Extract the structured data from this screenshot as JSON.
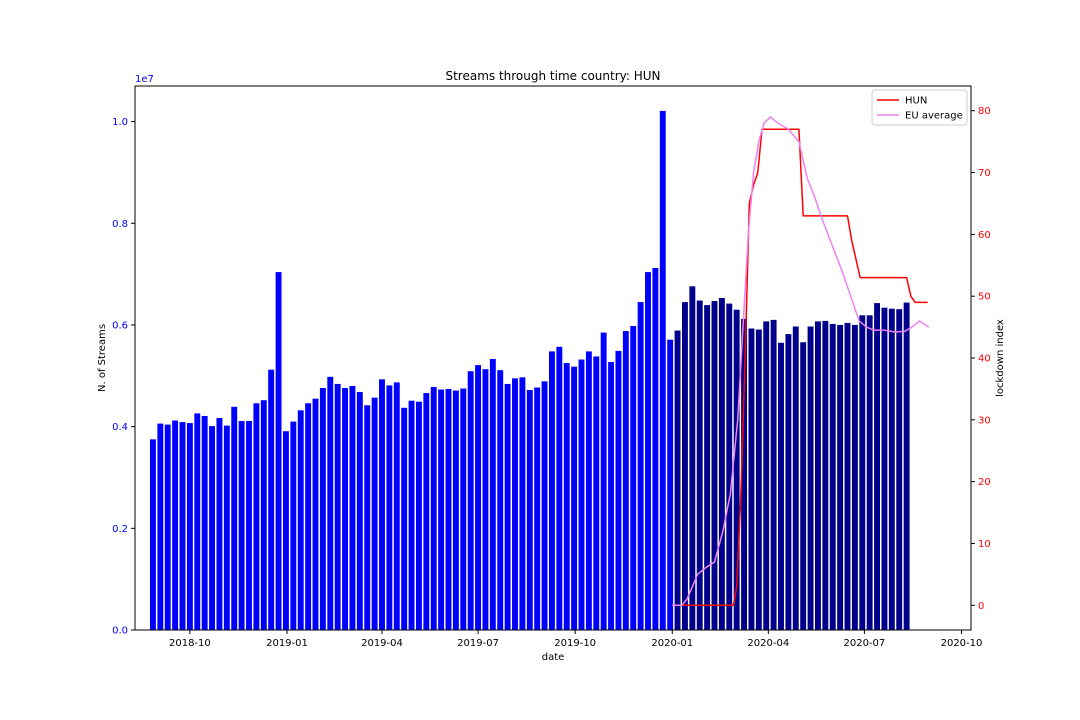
{
  "chart_data": {
    "type": "bar+line",
    "title": "Streams through time country: HUN",
    "xlabel": "date",
    "ylabel_left": "N. of Streams",
    "ylabel_right": "lockdown index",
    "left_axis_multiplier": "1e7",
    "left_ylim": [
      0,
      1.07
    ],
    "left_yticks": [
      "0.0",
      "0.2",
      "0.4",
      "0.6",
      "0.8",
      "1.0"
    ],
    "right_ylim": [
      -4,
      84
    ],
    "right_yticks": [
      "0",
      "10",
      "20",
      "30",
      "40",
      "50",
      "60",
      "70",
      "80"
    ],
    "xlim": [
      "2018-08-10",
      "2020-10-10"
    ],
    "xticks": [
      "2018-10",
      "2019-01",
      "2019-04",
      "2019-07",
      "2019-10",
      "2020-01",
      "2020-04",
      "2020-07",
      "2020-10"
    ],
    "bars": {
      "start_date": "2018-08-27",
      "interval": "week",
      "color_2019_and_earlier": "#0000ff",
      "color_2020": "#00008b",
      "values": [
        0.375,
        0.406,
        0.404,
        0.412,
        0.409,
        0.407,
        0.426,
        0.421,
        0.401,
        0.417,
        0.402,
        0.439,
        0.411,
        0.411,
        0.446,
        0.452,
        0.512,
        0.704,
        0.391,
        0.41,
        0.432,
        0.446,
        0.455,
        0.476,
        0.498,
        0.484,
        0.476,
        0.48,
        0.468,
        0.442,
        0.457,
        0.493,
        0.481,
        0.487,
        0.437,
        0.451,
        0.449,
        0.466,
        0.478,
        0.473,
        0.474,
        0.471,
        0.475,
        0.509,
        0.521,
        0.513,
        0.533,
        0.511,
        0.484,
        0.495,
        0.497,
        0.472,
        0.477,
        0.489,
        0.548,
        0.557,
        0.525,
        0.518,
        0.532,
        0.548,
        0.538,
        0.585,
        0.527,
        0.549,
        0.588,
        0.598,
        0.645,
        0.704,
        0.712,
        1.021,
        0.571,
        0.589,
        0.645,
        0.676,
        0.648,
        0.639,
        0.647,
        0.653,
        0.642,
        0.63,
        0.612,
        0.593,
        0.591,
        0.607,
        0.61,
        0.565,
        0.582,
        0.597,
        0.566,
        0.597,
        0.607,
        0.608,
        0.602,
        0.6,
        0.604,
        0.6,
        0.619,
        0.619,
        0.643,
        0.634,
        0.632,
        0.631,
        0.644
      ]
    },
    "series": [
      {
        "name": "HUN",
        "color": "#ff0000",
        "x": [
          "2020-01-01",
          "2020-02-15",
          "2020-02-28",
          "2020-03-02",
          "2020-03-06",
          "2020-03-10",
          "2020-03-14",
          "2020-03-18",
          "2020-03-22",
          "2020-03-26",
          "2020-03-30",
          "2020-04-30",
          "2020-05-04",
          "2020-06-15",
          "2020-06-19",
          "2020-06-23",
          "2020-06-27",
          "2020-08-10",
          "2020-08-14",
          "2020-08-18",
          "2020-08-24",
          "2020-08-30"
        ],
        "values": [
          0,
          0,
          0,
          3,
          18,
          40,
          65,
          68,
          70,
          77,
          77,
          77,
          63,
          63,
          59,
          56,
          53,
          53,
          50,
          49,
          49,
          49
        ]
      },
      {
        "name": "EU average",
        "color": "#ee82ee",
        "x": [
          "2020-01-01",
          "2020-01-10",
          "2020-01-15",
          "2020-01-20",
          "2020-01-25",
          "2020-02-01",
          "2020-02-10",
          "2020-02-18",
          "2020-02-25",
          "2020-03-03",
          "2020-03-08",
          "2020-03-13",
          "2020-03-18",
          "2020-03-23",
          "2020-03-28",
          "2020-04-03",
          "2020-04-10",
          "2020-04-20",
          "2020-04-30",
          "2020-05-08",
          "2020-05-15",
          "2020-05-23",
          "2020-06-01",
          "2020-06-10",
          "2020-06-18",
          "2020-06-26",
          "2020-07-03",
          "2020-07-10",
          "2020-07-20",
          "2020-07-30",
          "2020-08-08",
          "2020-08-15",
          "2020-08-22",
          "2020-08-31"
        ],
        "values": [
          0,
          0,
          1,
          3,
          5,
          6,
          7,
          12,
          18,
          30,
          45,
          60,
          70,
          75,
          78,
          79,
          78,
          77,
          75,
          69,
          66,
          62,
          58,
          54,
          50,
          46,
          45,
          44.5,
          44.5,
          44.2,
          44.3,
          45,
          46,
          45
        ]
      }
    ],
    "legend_position": "top-right",
    "grid": false
  }
}
